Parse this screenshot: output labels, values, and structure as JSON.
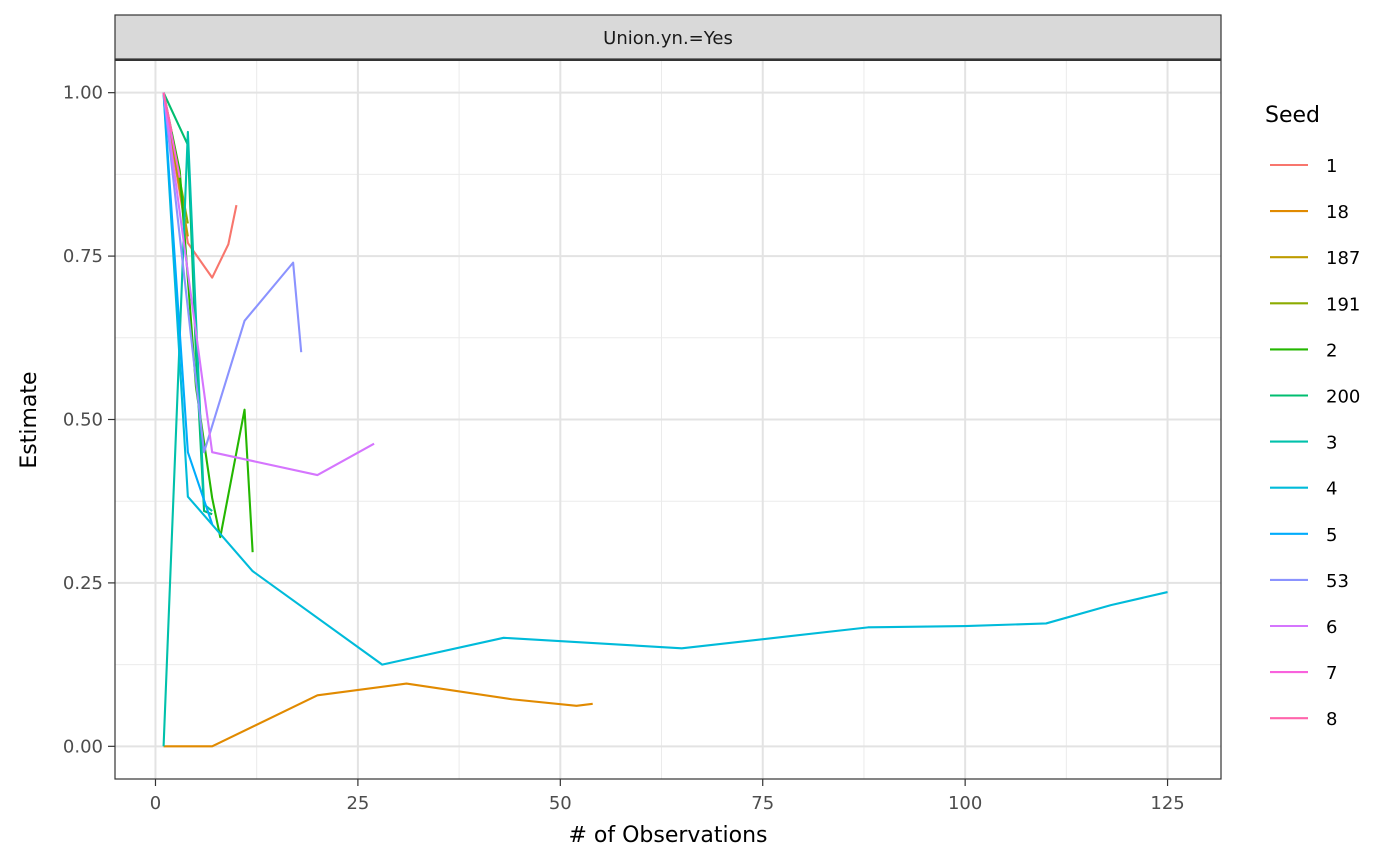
{
  "chart_data": {
    "type": "line",
    "facet_label": "Union.yn.=Yes",
    "xlabel": "# of Observations",
    "ylabel": "Estimate",
    "xlim": [
      -5,
      131.6
    ],
    "ylim": [
      -0.05,
      1.05
    ],
    "x_ticks": [
      0,
      25,
      50,
      75,
      100,
      125
    ],
    "x_tick_labels": [
      "0",
      "25",
      "50",
      "75",
      "100",
      "125"
    ],
    "y_ticks": [
      0,
      0.25,
      0.5,
      0.75,
      1.0
    ],
    "y_tick_labels": [
      "0.00",
      "0.25",
      "0.50",
      "0.75",
      "1.00"
    ],
    "grid": true,
    "legend": {
      "title": "Seed",
      "position": "right"
    },
    "series": [
      {
        "name": "1",
        "color": "#F8766D",
        "x": [
          1,
          4,
          7,
          9,
          10
        ],
        "y": [
          1.0,
          0.77,
          0.717,
          0.768,
          0.828
        ]
      },
      {
        "name": "18",
        "color": "#E18A00",
        "x": [
          1,
          4,
          7,
          20,
          31,
          44,
          52,
          54
        ],
        "y": [
          0.0,
          0.0,
          0.0,
          0.078,
          0.096,
          0.072,
          0.062,
          0.065
        ]
      },
      {
        "name": "187",
        "color": "#BE9C00",
        "x": [
          1,
          4
        ],
        "y": [
          1.0,
          0.78
        ]
      },
      {
        "name": "191",
        "color": "#8CAB00",
        "x": [
          1,
          4
        ],
        "y": [
          1.0,
          0.8
        ]
      },
      {
        "name": "2",
        "color": "#24B700",
        "x": [
          1,
          3,
          5,
          7,
          8,
          11,
          12
        ],
        "y": [
          1.0,
          0.88,
          0.55,
          0.38,
          0.32,
          0.515,
          0.297
        ]
      },
      {
        "name": "200",
        "color": "#00BE70",
        "x": [
          1,
          4,
          5,
          6,
          7
        ],
        "y": [
          1.0,
          0.92,
          0.6,
          0.36,
          0.355
        ]
      },
      {
        "name": "3",
        "color": "#00C1AB",
        "x": [
          1,
          4,
          6,
          7
        ],
        "y": [
          0.0,
          0.94,
          0.37,
          0.36
        ]
      },
      {
        "name": "4",
        "color": "#00BBDA",
        "x": [
          1,
          4,
          12,
          28,
          43,
          65,
          88,
          100,
          110,
          118,
          125
        ],
        "y": [
          1.0,
          0.382,
          0.268,
          0.125,
          0.166,
          0.15,
          0.182,
          0.184,
          0.188,
          0.216,
          0.236
        ]
      },
      {
        "name": "5",
        "color": "#00ACFC",
        "x": [
          1,
          4,
          7
        ],
        "y": [
          1.0,
          0.45,
          0.34
        ]
      },
      {
        "name": "53",
        "color": "#8B93FF",
        "x": [
          1,
          6,
          11,
          17,
          18
        ],
        "y": [
          1.0,
          0.45,
          0.651,
          0.74,
          0.603
        ]
      },
      {
        "name": "6",
        "color": "#D575FE",
        "x": [
          1,
          7,
          20,
          27
        ],
        "y": [
          1.0,
          0.45,
          0.415,
          0.463
        ]
      },
      {
        "name": "7",
        "color": "#F962DD",
        "x": [
          1,
          3
        ],
        "y": [
          1.0,
          0.87
        ]
      },
      {
        "name": "8",
        "color": "#FF65AC",
        "x": [
          1,
          2
        ],
        "y": [
          1.0,
          0.94
        ]
      }
    ]
  }
}
